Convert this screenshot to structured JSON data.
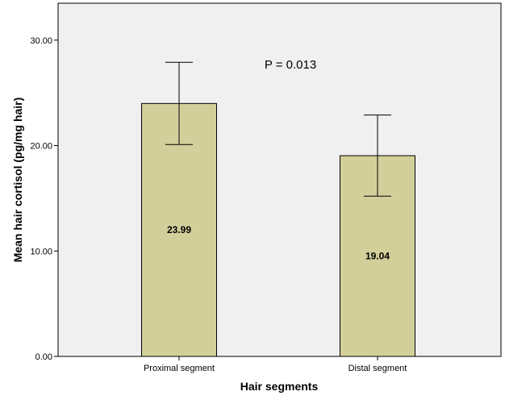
{
  "chart_data": {
    "type": "bar",
    "title": "",
    "xlabel": "Hair segments",
    "ylabel": "Mean hair cortisol (pg/mg hair)",
    "categories": [
      "Proximal segment",
      "Distal segment"
    ],
    "values": [
      23.99,
      19.04
    ],
    "value_labels": [
      "23.99",
      "19.04"
    ],
    "error_bars": [
      {
        "low": 20.1,
        "high": 27.9
      },
      {
        "low": 15.2,
        "high": 22.9
      }
    ],
    "ylim": [
      0,
      33.5
    ],
    "yticks": [
      0,
      10,
      20,
      30
    ],
    "ytick_labels": [
      "0.00",
      "10.00",
      "20.00",
      "30.00"
    ],
    "grid": false,
    "annotation": "P = 0.013",
    "colors": {
      "bar_fill": "#d3cf9a",
      "bar_stroke": "#000000",
      "plot_background": "#f0f0f0",
      "frame": "#000000"
    }
  }
}
